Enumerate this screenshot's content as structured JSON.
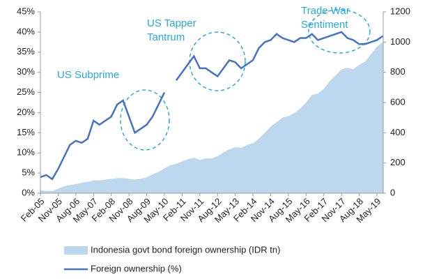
{
  "chart_data": {
    "type": "line-area",
    "categories": [
      "Feb-05",
      null,
      null,
      "Nov-05",
      null,
      null,
      "Aug-06",
      null,
      null,
      "May-07",
      null,
      null,
      "Feb-08",
      null,
      null,
      "Nov-08",
      null,
      null,
      "Aug-09",
      null,
      null,
      "May-10",
      null,
      null,
      "Feb-11",
      null,
      null,
      "Nov-11",
      null,
      null,
      "Aug-12",
      null,
      null,
      "May-13",
      null,
      null,
      "Feb-14",
      null,
      null,
      "Nov-14",
      null,
      null,
      "Aug-15",
      null,
      null,
      "May-16",
      null,
      null,
      "Feb-17",
      null,
      null,
      "Nov-17",
      null,
      null,
      "Aug-18",
      null,
      null,
      "May-19",
      null
    ],
    "series": [
      {
        "name": "Indonesia govt bond foreign ownership (IDR tn)",
        "color": "#bdd7ee",
        "axis": "y2",
        "kind": "area",
        "values": [
          20,
          15,
          15,
          30,
          45,
          55,
          60,
          70,
          75,
          85,
          85,
          90,
          95,
          100,
          100,
          95,
          90,
          95,
          105,
          125,
          140,
          165,
          185,
          195,
          210,
          225,
          235,
          220,
          230,
          230,
          245,
          270,
          290,
          305,
          300,
          320,
          330,
          360,
          400,
          440,
          470,
          500,
          510,
          530,
          560,
          600,
          650,
          660,
          690,
          740,
          780,
          820,
          830,
          820,
          850,
          870,
          920,
          970,
          1000
        ]
      },
      {
        "name": "Foreign ownership (%)",
        "color": "#4472c4",
        "axis": "y",
        "kind": "line",
        "values": [
          4,
          4.5,
          3.5,
          6,
          9,
          12,
          13,
          12.5,
          13.5,
          18,
          17,
          18,
          19,
          22,
          23,
          19,
          15,
          16,
          17,
          19,
          22,
          25,
          null,
          28,
          30,
          32,
          34,
          31,
          31,
          30,
          29,
          31,
          33,
          32.5,
          31,
          32,
          33,
          36,
          37.5,
          38,
          39.5,
          38.5,
          38,
          37.5,
          38.5,
          38.5,
          39.5,
          38,
          38.5,
          39,
          39.5,
          40,
          38.5,
          38,
          37,
          37,
          37.5,
          38,
          39
        ]
      }
    ],
    "ylim": [
      0,
      45
    ],
    "yticks": [
      {
        "value": 0,
        "label": "0%"
      },
      {
        "value": 5,
        "label": "5%"
      },
      {
        "value": 10,
        "label": "10%"
      },
      {
        "value": 15,
        "label": "15%"
      },
      {
        "value": 20,
        "label": "20%"
      },
      {
        "value": 25,
        "label": "25%"
      },
      {
        "value": 30,
        "label": "30%"
      },
      {
        "value": 35,
        "label": "35%"
      },
      {
        "value": 40,
        "label": "40%"
      },
      {
        "value": 45,
        "label": "45%"
      }
    ],
    "y2lim": [
      0,
      1200
    ],
    "y2ticks": [
      0,
      200,
      400,
      600,
      800,
      1000,
      1200
    ],
    "annotations": [
      [
        "US Subprime"
      ],
      [
        "US Tapper",
        "Tantrum"
      ],
      [
        "Trade War",
        "Sentiment"
      ]
    ],
    "grid": false
  }
}
